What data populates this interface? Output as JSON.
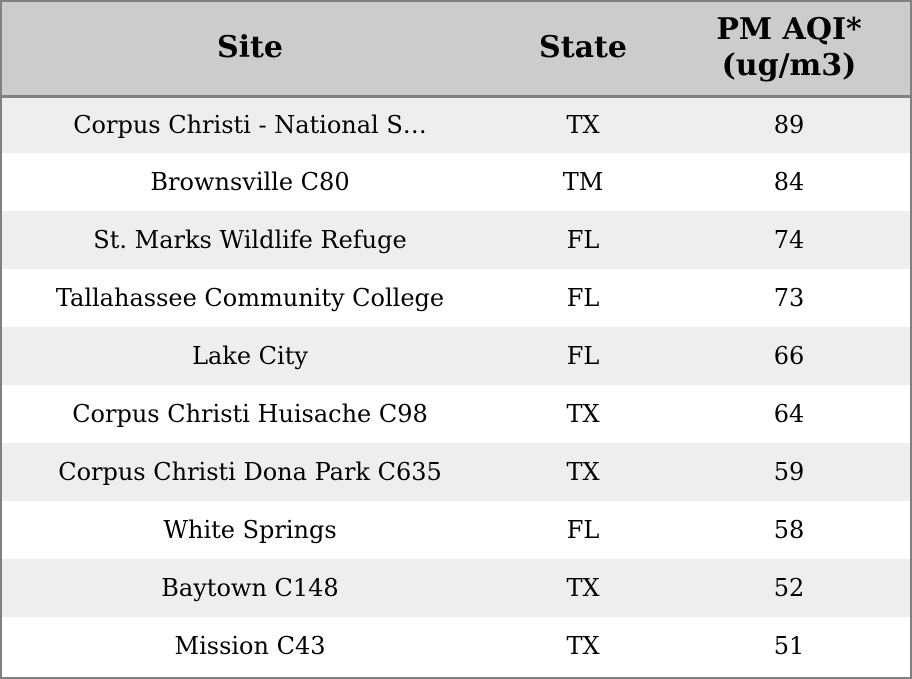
{
  "table": {
    "headers": {
      "site": "Site",
      "state": "State",
      "pm_line1": "PM AQI*",
      "pm_line2": "(ug/m3)"
    },
    "rows": [
      {
        "site": "Corpus Christi - National S…",
        "state": "TX",
        "pm": "89"
      },
      {
        "site": "Brownsville C80",
        "state": "TM",
        "pm": "84"
      },
      {
        "site": "St. Marks Wildlife Refuge",
        "state": "FL",
        "pm": "74"
      },
      {
        "site": "Tallahassee Community College",
        "state": "FL",
        "pm": "73"
      },
      {
        "site": "Lake City",
        "state": "FL",
        "pm": "66"
      },
      {
        "site": "Corpus Christi Huisache C98",
        "state": "TX",
        "pm": "64"
      },
      {
        "site": "Corpus Christi Dona Park C635",
        "state": "TX",
        "pm": "59"
      },
      {
        "site": "White Springs",
        "state": "FL",
        "pm": "58"
      },
      {
        "site": "Baytown C148",
        "state": "TX",
        "pm": "52"
      },
      {
        "site": "Mission C43",
        "state": "TX",
        "pm": "51"
      }
    ]
  },
  "colors": {
    "header_bg": "#cccccc",
    "row_alt_bg": "#eeeeee",
    "row_bg": "#ffffff",
    "border": "#808080"
  }
}
